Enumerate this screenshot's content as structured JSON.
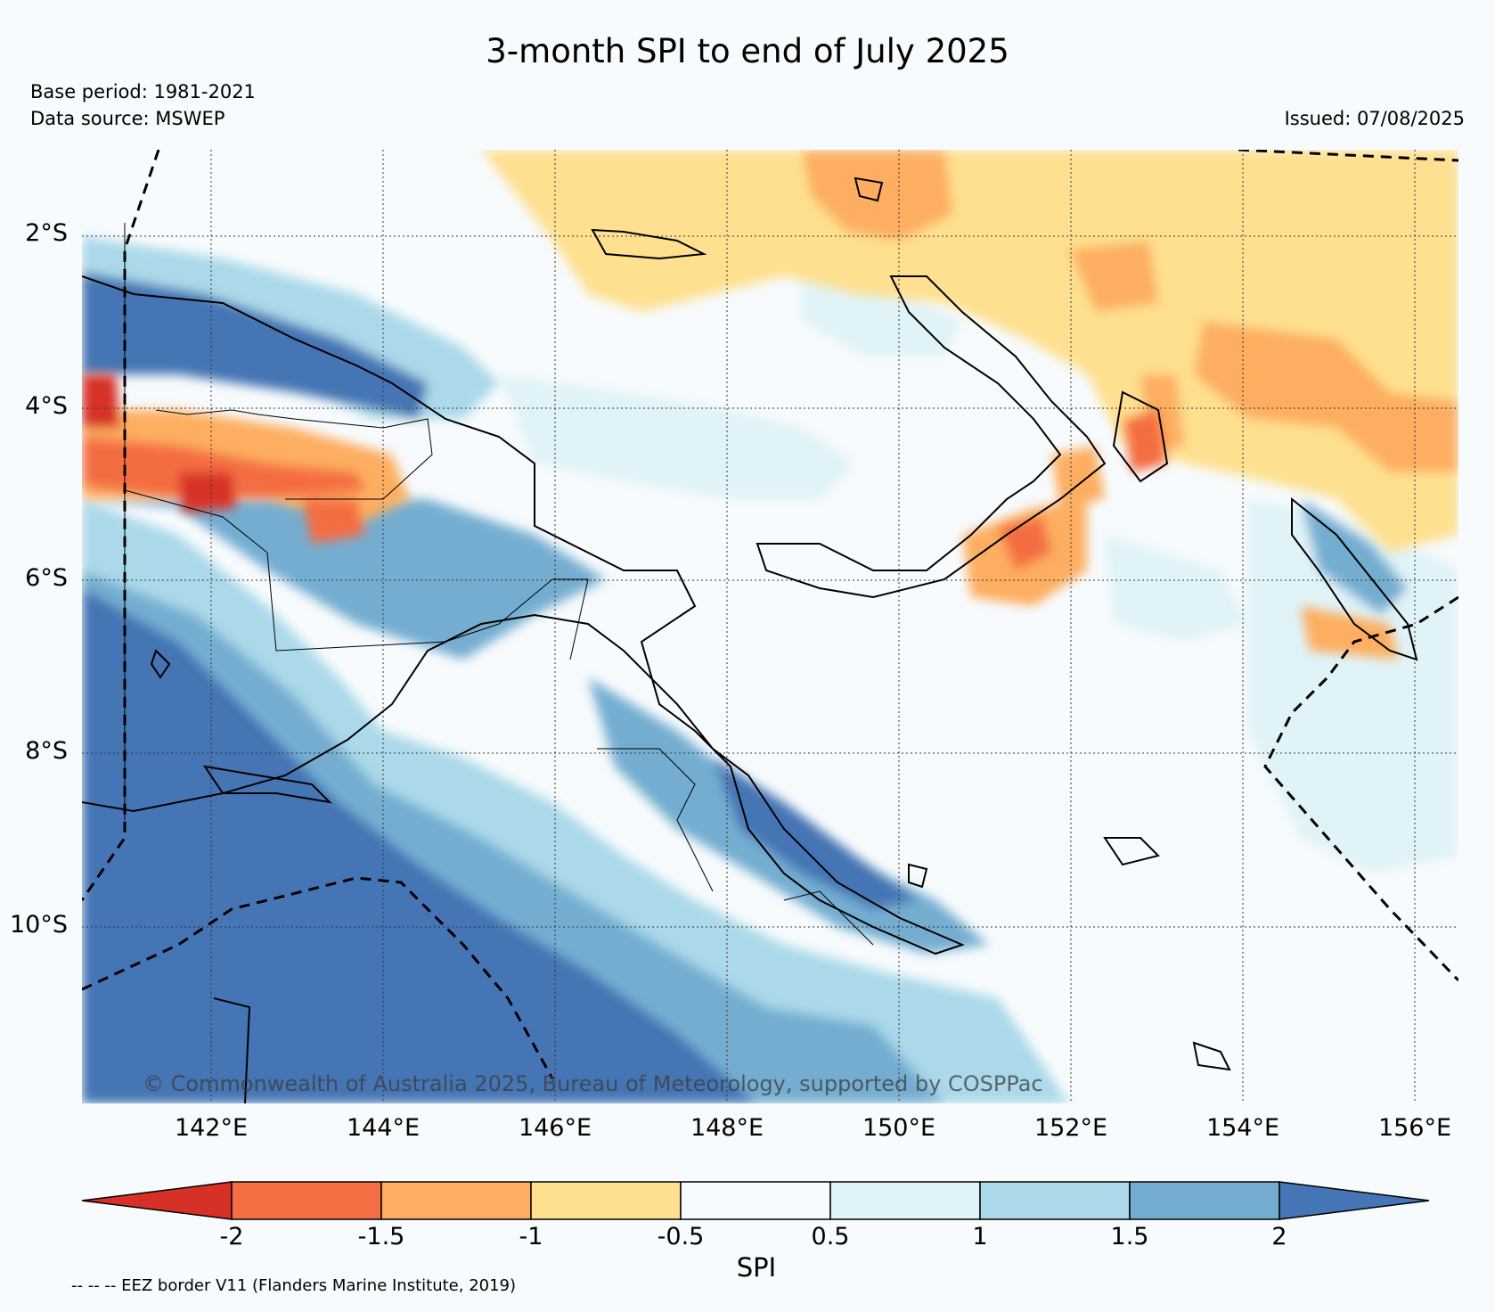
{
  "title": "3-month SPI to end of July 2025",
  "base_period": "Base period: 1981-2021",
  "data_source": "Data source: MSWEP",
  "issued": "Issued: 07/08/2025",
  "copyright": "© Commonwealth of Australia 2025, Bureau of Meteorology, supported by COSPPac",
  "eez_note": "-- -- -- EEZ border V11 (Flanders Marine Institute, 2019)",
  "map": {
    "lat_labels": [
      "2°S",
      "4°S",
      "6°S",
      "8°S",
      "10°S"
    ],
    "lon_labels": [
      "142°E",
      "144°E",
      "146°E",
      "148°E",
      "150°E",
      "152°E",
      "154°E",
      "156°E"
    ]
  },
  "colorbar": {
    "label": "SPI",
    "ticks": [
      "-2",
      "-1.5",
      "-1",
      "-0.5",
      "0.5",
      "1",
      "1.5",
      "2"
    ],
    "colors": {
      "below_-2": "#d73027",
      "-2_-1.5": "#f46d43",
      "-1.5_-1": "#fdae61",
      "-1_-0.5": "#fee090",
      "-0.5_0.5": "#f7fbfd",
      "0.5_1": "#e0f3f8",
      "1_1.5": "#abd9e9",
      "1.5_2": "#74add1",
      "above_2": "#4575b4"
    }
  }
}
